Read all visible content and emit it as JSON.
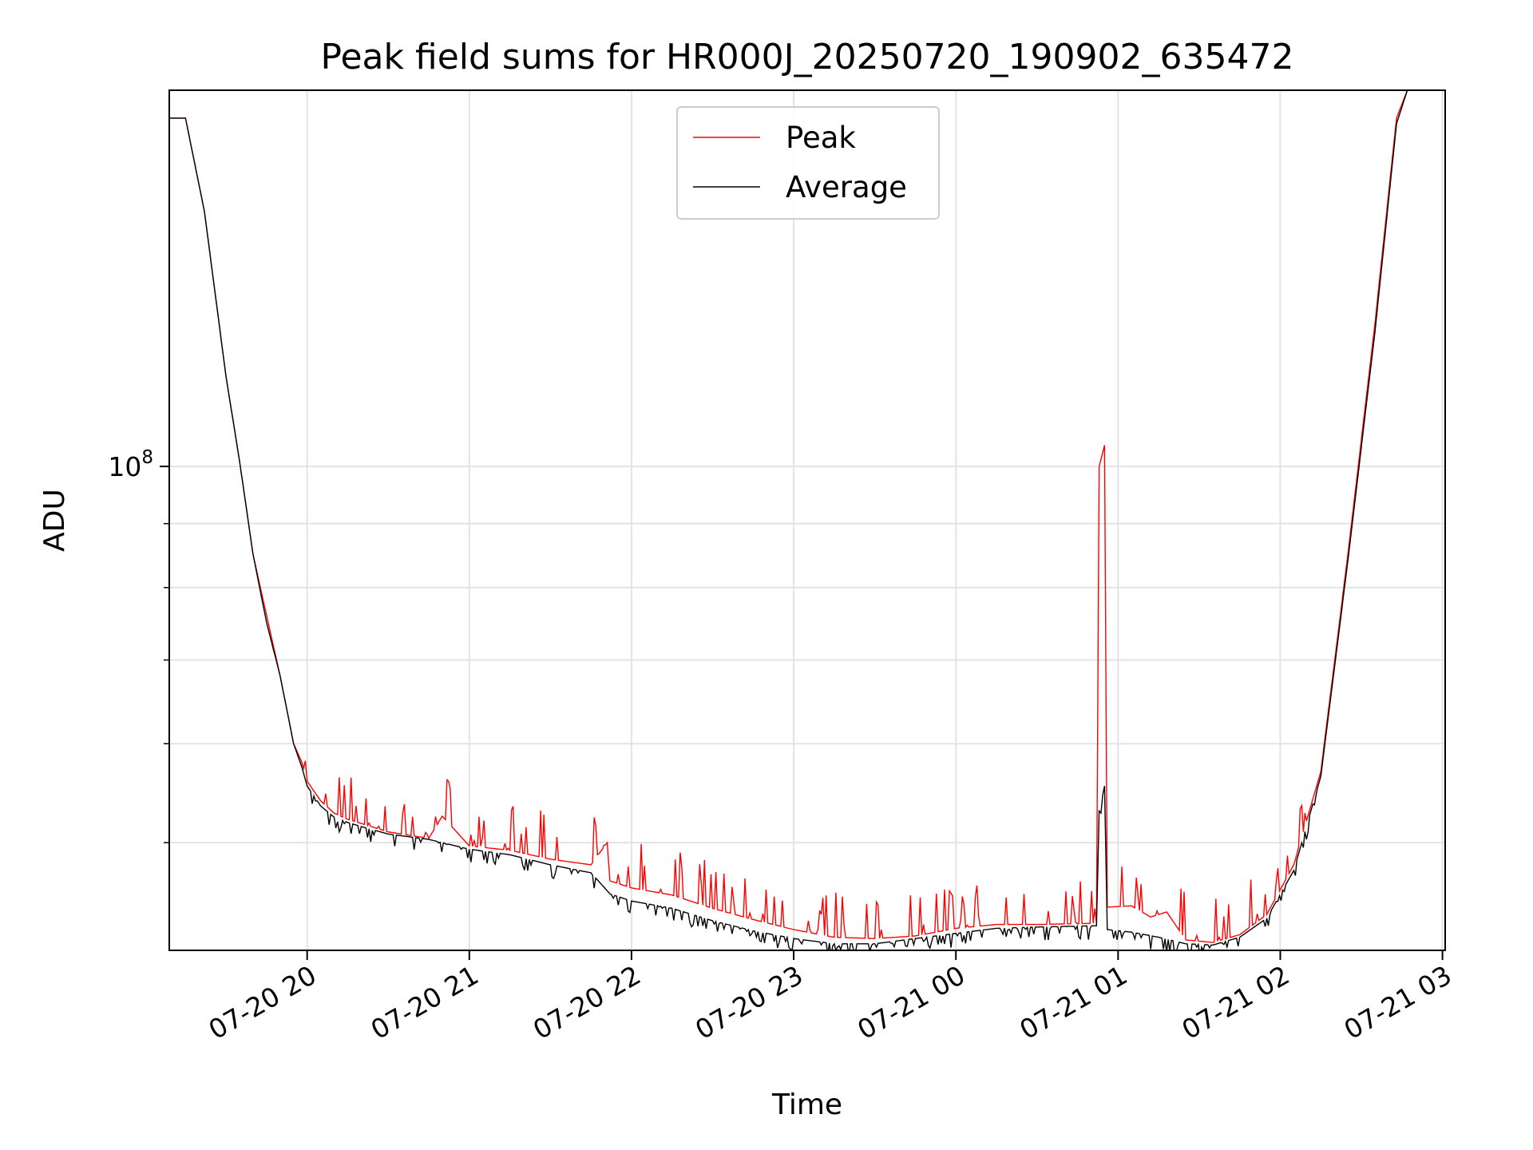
{
  "chart_data": {
    "type": "line",
    "title": "Peak field sums for HR000J_20250720_190902_635472",
    "xlabel": "Time",
    "ylabel": "ADU",
    "yscale": "log",
    "xlim": [
      "07-20 19:09",
      "07-21 03:01"
    ],
    "ylim": [
      41000000,
      200000000
    ],
    "grid": true,
    "legend": "upper-center",
    "x_ticks": [
      "07-20 20",
      "07-20 21",
      "07-20 22",
      "07-20 23",
      "07-21 00",
      "07-21 01",
      "07-21 02",
      "07-21 03"
    ],
    "y_ticks": [
      {
        "label": "10",
        "exponent": "8",
        "value": 100000000
      }
    ],
    "series": [
      {
        "name": "Peak",
        "color": "#ff0000",
        "points": [
          [
            "07-20 19:09",
            190000000
          ],
          [
            "07-20 19:15",
            190000000
          ],
          [
            "07-20 19:22",
            160000000
          ],
          [
            "07-20 19:30",
            118000000
          ],
          [
            "07-20 19:35",
            101000000
          ],
          [
            "07-20 19:40",
            85000000
          ],
          [
            "07-20 19:45",
            76000000
          ],
          [
            "07-20 19:50",
            68000000
          ],
          [
            "07-20 19:55",
            60000000
          ],
          [
            "07-20 19:58",
            58000000
          ],
          [
            "07-20 20:00",
            56000000
          ],
          [
            "07-20 20:05",
            54000000
          ],
          [
            "07-20 20:10",
            52800000
          ],
          [
            "07-20 20:15",
            52200000
          ],
          [
            "07-20 20:20",
            51800000
          ],
          [
            "07-20 20:30",
            51000000
          ],
          [
            "07-20 20:45",
            50400000
          ],
          [
            "07-20 20:50",
            52500000
          ],
          [
            "07-20 21:00",
            49700000
          ],
          [
            "07-20 21:15",
            49300000
          ],
          [
            "07-20 21:30",
            48500000
          ],
          [
            "07-20 21:45",
            48000000
          ],
          [
            "07-20 21:51",
            50000000
          ],
          [
            "07-20 21:52",
            46600000
          ],
          [
            "07-20 22:00",
            46000000
          ],
          [
            "07-20 22:15",
            45400000
          ],
          [
            "07-20 22:30",
            44300000
          ],
          [
            "07-20 22:45",
            43400000
          ],
          [
            "07-20 23:00",
            42600000
          ],
          [
            "07-20 23:15",
            42000000
          ],
          [
            "07-20 23:30",
            41900000
          ],
          [
            "07-20 23:45",
            42100000
          ],
          [
            "07-21 00:00",
            42700000
          ],
          [
            "07-21 00:15",
            43000000
          ],
          [
            "07-21 00:30",
            43000000
          ],
          [
            "07-21 00:52",
            43100000
          ],
          [
            "07-21 00:53",
            100000000
          ],
          [
            "07-21 00:55",
            104000000
          ],
          [
            "07-21 00:56",
            44400000
          ],
          [
            "07-21 01:05",
            44500000
          ],
          [
            "07-21 01:12",
            43600000
          ],
          [
            "07-21 01:18",
            44000000
          ],
          [
            "07-21 01:25",
            41800000
          ],
          [
            "07-21 01:35",
            41600000
          ],
          [
            "07-21 01:45",
            42200000
          ],
          [
            "07-21 01:55",
            43800000
          ],
          [
            "07-21 02:05",
            48000000
          ],
          [
            "07-21 02:15",
            57000000
          ],
          [
            "07-21 02:25",
            85000000
          ],
          [
            "07-21 02:35",
            130000000
          ],
          [
            "07-21 02:43",
            190000000
          ],
          [
            "07-21 02:47",
            200000000
          ]
        ]
      },
      {
        "name": "Average",
        "color": "#000000",
        "points": [
          [
            "07-20 19:09",
            190000000
          ],
          [
            "07-20 19:15",
            190000000
          ],
          [
            "07-20 19:22",
            160000000
          ],
          [
            "07-20 19:30",
            118000000
          ],
          [
            "07-20 19:35",
            101000000
          ],
          [
            "07-20 19:40",
            85000000
          ],
          [
            "07-20 19:45",
            75000000
          ],
          [
            "07-20 19:50",
            68000000
          ],
          [
            "07-20 19:55",
            60000000
          ],
          [
            "07-20 19:58",
            57500000
          ],
          [
            "07-20 20:00",
            55500000
          ],
          [
            "07-20 20:05",
            53500000
          ],
          [
            "07-20 20:10",
            52400000
          ],
          [
            "07-20 20:15",
            51900000
          ],
          [
            "07-20 20:20",
            51500000
          ],
          [
            "07-20 20:30",
            50800000
          ],
          [
            "07-20 20:45",
            50300000
          ],
          [
            "07-20 21:00",
            49400000
          ],
          [
            "07-20 21:15",
            48900000
          ],
          [
            "07-20 21:30",
            48000000
          ],
          [
            "07-20 21:45",
            47300000
          ],
          [
            "07-20 21:52",
            45500000
          ],
          [
            "07-20 22:00",
            44900000
          ],
          [
            "07-20 22:15",
            44300000
          ],
          [
            "07-20 22:30",
            43300000
          ],
          [
            "07-20 22:45",
            42500000
          ],
          [
            "07-20 23:00",
            41900000
          ],
          [
            "07-20 23:15",
            41500000
          ],
          [
            "07-20 23:30",
            41500000
          ],
          [
            "07-20 23:45",
            41900000
          ],
          [
            "07-21 00:00",
            42300000
          ],
          [
            "07-21 00:15",
            42700000
          ],
          [
            "07-21 00:30",
            42800000
          ],
          [
            "07-21 00:52",
            42900000
          ],
          [
            "07-21 00:53",
            53000000
          ],
          [
            "07-21 00:55",
            55500000
          ],
          [
            "07-21 00:56",
            42600000
          ],
          [
            "07-21 01:05",
            42400000
          ],
          [
            "07-21 01:15",
            42000000
          ],
          [
            "07-21 01:25",
            41500000
          ],
          [
            "07-21 01:35",
            41400000
          ],
          [
            "07-21 01:45",
            42000000
          ],
          [
            "07-21 01:55",
            43500000
          ],
          [
            "07-21 02:05",
            47500000
          ],
          [
            "07-21 02:15",
            56500000
          ],
          [
            "07-21 02:25",
            84000000
          ],
          [
            "07-21 02:35",
            128000000
          ],
          [
            "07-21 02:43",
            188000000
          ],
          [
            "07-21 02:47",
            200000000
          ]
        ]
      }
    ]
  }
}
